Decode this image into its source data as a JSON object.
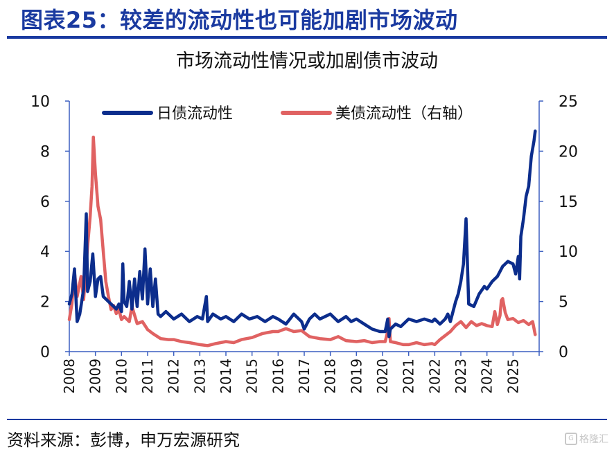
{
  "figure_title": "图表25：较差的流动性也可能加剧市场波动",
  "source": "资料来源：彭博，申万宏源研究",
  "watermark": "格隆汇",
  "colors": {
    "title": "#1a3aa0",
    "japan": "#0c2d8c",
    "us": "#e06262",
    "axis": "#3b5fc0",
    "text": "#111111"
  },
  "chart_data": {
    "type": "line",
    "title": "市场流动性情况或加剧债市波动",
    "xlabel": "",
    "ylabel": "",
    "y2label": "",
    "xlim": [
      2008,
      2026
    ],
    "ylim": [
      0,
      10
    ],
    "y2lim": [
      0,
      25
    ],
    "yticks": [
      "0",
      "2",
      "4",
      "6",
      "8",
      "10"
    ],
    "y2ticks": [
      "0",
      "5",
      "10",
      "15",
      "20",
      "25"
    ],
    "xticks": [
      "2008",
      "2009",
      "2010",
      "2011",
      "2012",
      "2013",
      "2014",
      "2015",
      "2016",
      "2017",
      "2018",
      "2019",
      "2020",
      "2021",
      "2022",
      "2023",
      "2024",
      "2025"
    ],
    "legend": "top",
    "grid": false,
    "series": [
      {
        "name": "日债流动性",
        "axis": "left",
        "x": [
          2008.0,
          2008.1,
          2008.2,
          2008.3,
          2008.4,
          2008.55,
          2008.65,
          2008.7,
          2008.8,
          2008.9,
          2009.0,
          2009.1,
          2009.2,
          2009.3,
          2009.5,
          2009.6,
          2009.7,
          2009.8,
          2009.9,
          2010.0,
          2010.05,
          2010.1,
          2010.2,
          2010.3,
          2010.4,
          2010.5,
          2010.6,
          2010.7,
          2010.8,
          2010.9,
          2011.0,
          2011.1,
          2011.2,
          2011.3,
          2011.4,
          2011.5,
          2011.7,
          2012.0,
          2012.3,
          2012.6,
          2012.9,
          2013.1,
          2013.25,
          2013.3,
          2013.5,
          2013.8,
          2014.0,
          2014.3,
          2014.6,
          2014.9,
          2015.2,
          2015.5,
          2015.8,
          2016.0,
          2016.3,
          2016.6,
          2016.9,
          2017.0,
          2017.2,
          2017.4,
          2017.6,
          2017.8,
          2018.0,
          2018.3,
          2018.6,
          2018.8,
          2019.0,
          2019.3,
          2019.6,
          2019.9,
          2020.1,
          2020.2,
          2020.25,
          2020.3,
          2020.5,
          2020.7,
          2021.0,
          2021.3,
          2021.6,
          2021.9,
          2022.0,
          2022.2,
          2022.4,
          2022.5,
          2022.6,
          2022.7,
          2022.8,
          2022.9,
          2023.0,
          2023.1,
          2023.2,
          2023.3,
          2023.5,
          2023.7,
          2023.9,
          2024.0,
          2024.2,
          2024.4,
          2024.6,
          2024.8,
          2025.0,
          2025.1,
          2025.2,
          2025.25,
          2025.3,
          2025.4,
          2025.5,
          2025.6,
          2025.7,
          2025.8,
          2025.85
        ],
        "values": [
          1.9,
          2.3,
          3.3,
          1.2,
          1.5,
          2.5,
          5.5,
          2.4,
          2.8,
          3.9,
          2.2,
          2.9,
          3.0,
          2.2,
          2.0,
          1.9,
          1.8,
          1.7,
          1.9,
          1.6,
          3.5,
          2.0,
          1.8,
          2.8,
          1.7,
          2.9,
          1.8,
          3.2,
          2.1,
          4.1,
          1.9,
          3.3,
          1.8,
          2.9,
          1.5,
          1.4,
          1.6,
          1.3,
          1.5,
          1.2,
          1.4,
          1.3,
          2.2,
          1.2,
          1.5,
          1.3,
          1.4,
          1.2,
          1.5,
          1.3,
          1.4,
          1.2,
          1.4,
          1.3,
          1.1,
          1.5,
          1.2,
          0.9,
          1.3,
          1.5,
          1.3,
          1.4,
          1.5,
          1.2,
          1.4,
          1.2,
          1.3,
          1.1,
          0.9,
          0.8,
          0.8,
          1.3,
          0.6,
          0.9,
          1.1,
          1.0,
          1.3,
          1.2,
          1.3,
          1.2,
          1.3,
          1.1,
          1.3,
          1.5,
          1.2,
          1.6,
          2.0,
          2.3,
          2.8,
          3.5,
          5.3,
          1.9,
          1.8,
          2.3,
          2.6,
          2.5,
          2.8,
          3.0,
          3.4,
          3.6,
          3.5,
          3.1,
          3.8,
          2.9,
          4.6,
          5.3,
          6.2,
          6.6,
          7.8,
          8.4,
          8.8
        ]
      },
      {
        "name": "美债流动性（右轴）",
        "axis": "right",
        "x": [
          2008.0,
          2008.1,
          2008.2,
          2008.3,
          2008.45,
          2008.55,
          2008.7,
          2008.8,
          2008.87,
          2008.92,
          2009.0,
          2009.1,
          2009.2,
          2009.3,
          2009.4,
          2009.5,
          2009.6,
          2009.7,
          2009.8,
          2009.9,
          2010.0,
          2010.1,
          2010.3,
          2010.4,
          2010.6,
          2010.8,
          2011.0,
          2011.2,
          2011.5,
          2011.8,
          2012.0,
          2012.3,
          2012.6,
          2013.0,
          2013.3,
          2013.6,
          2014.0,
          2014.3,
          2014.6,
          2015.0,
          2015.4,
          2015.8,
          2016.0,
          2016.3,
          2016.6,
          2016.9,
          2017.2,
          2017.6,
          2018.0,
          2018.3,
          2018.6,
          2019.0,
          2019.3,
          2019.6,
          2019.9,
          2020.1,
          2020.2,
          2020.25,
          2020.3,
          2020.5,
          2020.8,
          2021.0,
          2021.3,
          2021.6,
          2021.9,
          2022.0,
          2022.2,
          2022.4,
          2022.6,
          2022.8,
          2023.0,
          2023.2,
          2023.4,
          2023.6,
          2023.8,
          2024.0,
          2024.2,
          2024.3,
          2024.4,
          2024.5,
          2024.55,
          2024.6,
          2024.7,
          2024.8,
          2025.0,
          2025.2,
          2025.4,
          2025.6,
          2025.75,
          2025.85
        ],
        "values": [
          3.2,
          4.8,
          7.9,
          5.5,
          7.5,
          5.2,
          10.5,
          13.5,
          16.5,
          21.4,
          17.8,
          14.5,
          13.2,
          10.0,
          7.0,
          5.5,
          4.2,
          4.6,
          3.8,
          4.2,
          3.2,
          3.5,
          3.0,
          4.5,
          2.8,
          3.0,
          2.2,
          1.8,
          1.3,
          1.2,
          1.2,
          1.0,
          0.9,
          0.7,
          0.6,
          0.8,
          1.0,
          0.9,
          1.2,
          1.4,
          1.8,
          2.0,
          2.0,
          2.3,
          2.0,
          2.1,
          1.5,
          1.3,
          1.2,
          1.5,
          1.1,
          1.0,
          1.1,
          0.9,
          1.0,
          1.0,
          2.0,
          3.3,
          1.0,
          0.9,
          0.7,
          0.7,
          0.9,
          0.7,
          0.8,
          0.7,
          1.2,
          1.6,
          2.0,
          2.6,
          3.0,
          2.4,
          3.0,
          2.6,
          2.8,
          2.6,
          2.5,
          4.0,
          2.7,
          3.6,
          5.1,
          5.3,
          3.9,
          3.2,
          3.3,
          2.9,
          3.1,
          2.7,
          3.0,
          1.7
        ]
      }
    ]
  }
}
